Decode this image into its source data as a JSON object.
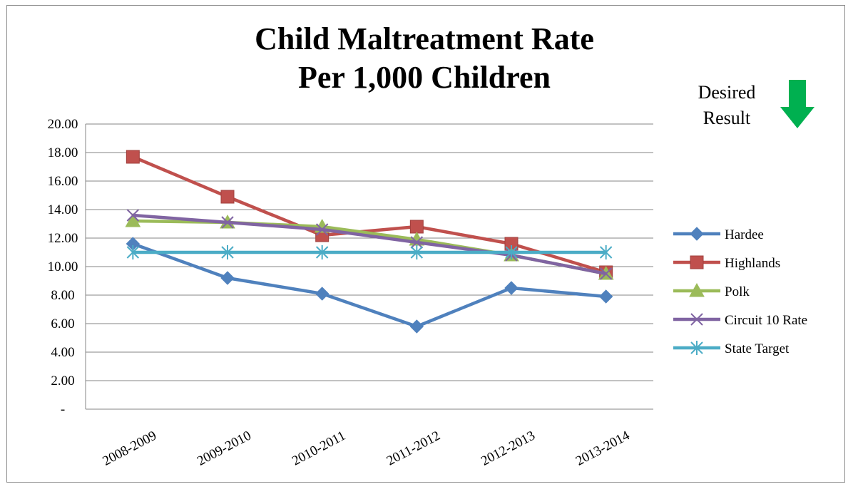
{
  "chart_data": {
    "type": "line",
    "title_lines": [
      "Child Maltreatment Rate",
      "Per 1,000 Children"
    ],
    "annotation": {
      "lines": [
        "Desired",
        "Result"
      ],
      "arrow": "down",
      "arrow_color": "#00b050"
    },
    "categories": [
      "2008-2009",
      "2009-2010",
      "2010-2011",
      "2011-2012",
      "2012-2013",
      "2013-2014"
    ],
    "ylim": [
      0,
      20
    ],
    "yticks": [
      0,
      2,
      4,
      6,
      8,
      10,
      12,
      14,
      16,
      18,
      20
    ],
    "ytick_labels": [
      "-",
      "2.00",
      "4.00",
      "6.00",
      "8.00",
      "10.00",
      "12.00",
      "14.00",
      "16.00",
      "18.00",
      "20.00"
    ],
    "grid": true,
    "legend_position": "right",
    "series": [
      {
        "name": "Hardee",
        "color": "#4f81bd",
        "marker": "diamond",
        "values": [
          11.6,
          9.2,
          8.1,
          5.8,
          8.5,
          7.9
        ]
      },
      {
        "name": "Highlands",
        "color": "#c0504d",
        "marker": "square",
        "values": [
          17.7,
          14.9,
          12.2,
          12.8,
          11.6,
          9.6
        ]
      },
      {
        "name": "Polk",
        "color": "#9bbb59",
        "marker": "triangle",
        "values": [
          13.2,
          13.1,
          12.8,
          11.9,
          10.8,
          9.5
        ]
      },
      {
        "name": "Circuit 10 Rate",
        "color": "#8064a2",
        "marker": "x",
        "values": [
          13.6,
          13.1,
          12.6,
          11.7,
          10.8,
          9.5
        ]
      },
      {
        "name": "State Target",
        "color": "#4bacc6",
        "marker": "star",
        "values": [
          11.0,
          11.0,
          11.0,
          11.0,
          11.0,
          11.0
        ]
      }
    ]
  }
}
